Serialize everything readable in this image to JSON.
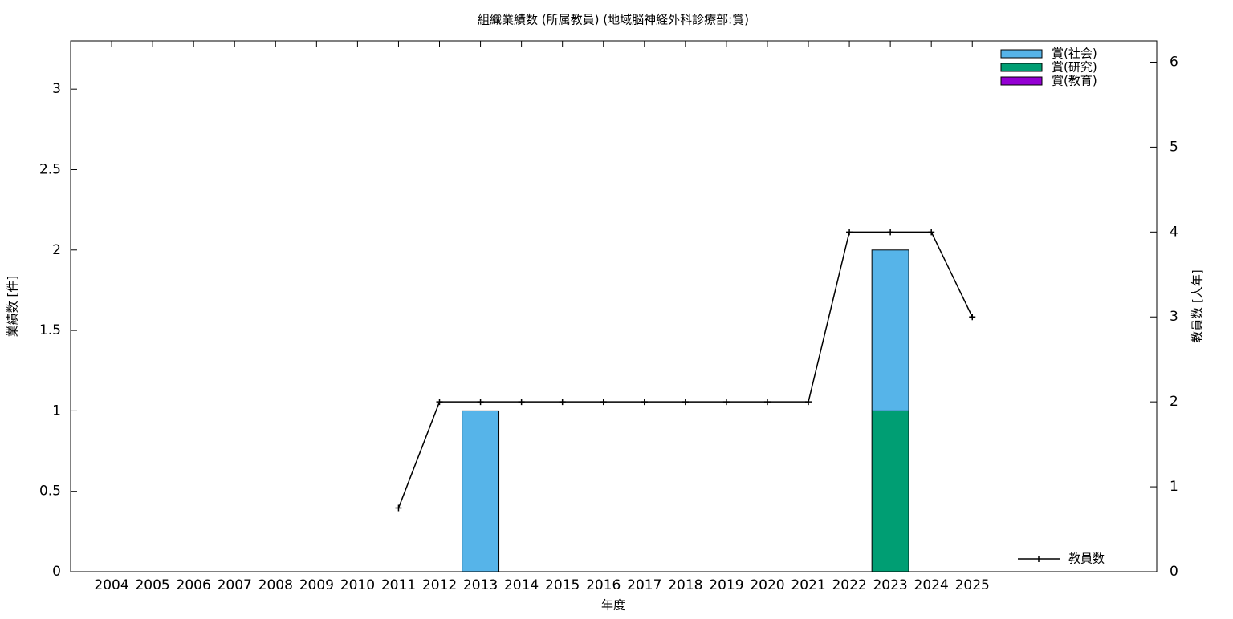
{
  "chart_data": {
    "type": "bar",
    "title": "組織業績数 (所属教員) (地域脳神経外科診療部:賞)",
    "x_label": "年度",
    "y_label": "業績数 [件]",
    "y2_label": "教員数 [人年]",
    "categories": [
      "2004",
      "2005",
      "2006",
      "2007",
      "2008",
      "2009",
      "2010",
      "2011",
      "2012",
      "2013",
      "2014",
      "2015",
      "2016",
      "2017",
      "2018",
      "2019",
      "2020",
      "2021",
      "2022",
      "2023",
      "2024",
      "2025"
    ],
    "series": [
      {
        "name": "賞(社会)",
        "color": "#56b4e9",
        "type": "bar",
        "values": [
          0,
          0,
          0,
          0,
          0,
          0,
          0,
          0,
          0,
          1,
          0,
          0,
          0,
          0,
          0,
          0,
          0,
          0,
          0,
          1,
          0,
          0
        ]
      },
      {
        "name": "賞(研究)",
        "color": "#009e73",
        "type": "bar",
        "values": [
          0,
          0,
          0,
          0,
          0,
          0,
          0,
          0,
          0,
          0,
          0,
          0,
          0,
          0,
          0,
          0,
          0,
          0,
          0,
          1,
          0,
          0
        ]
      },
      {
        "name": "賞(教育)",
        "color": "#9400d3",
        "type": "bar",
        "values": [
          0,
          0,
          0,
          0,
          0,
          0,
          0,
          0,
          0,
          0,
          0,
          0,
          0,
          0,
          0,
          0,
          0,
          0,
          0,
          0,
          0,
          0
        ]
      },
      {
        "name": "教員数",
        "color": "#000000",
        "type": "line",
        "axis": "y2",
        "values": [
          null,
          null,
          null,
          null,
          null,
          null,
          null,
          0.75,
          2,
          2,
          2,
          2,
          2,
          2,
          2,
          2,
          2,
          2,
          4,
          4,
          4,
          3
        ]
      }
    ],
    "ylim": [
      0,
      3.3
    ],
    "yticks": [
      0,
      0.5,
      1,
      1.5,
      2,
      2.5,
      3
    ],
    "y2lim": [
      0,
      6.25
    ],
    "y2ticks": [
      0,
      1,
      2,
      3,
      4,
      5,
      6
    ],
    "stacked": true
  }
}
